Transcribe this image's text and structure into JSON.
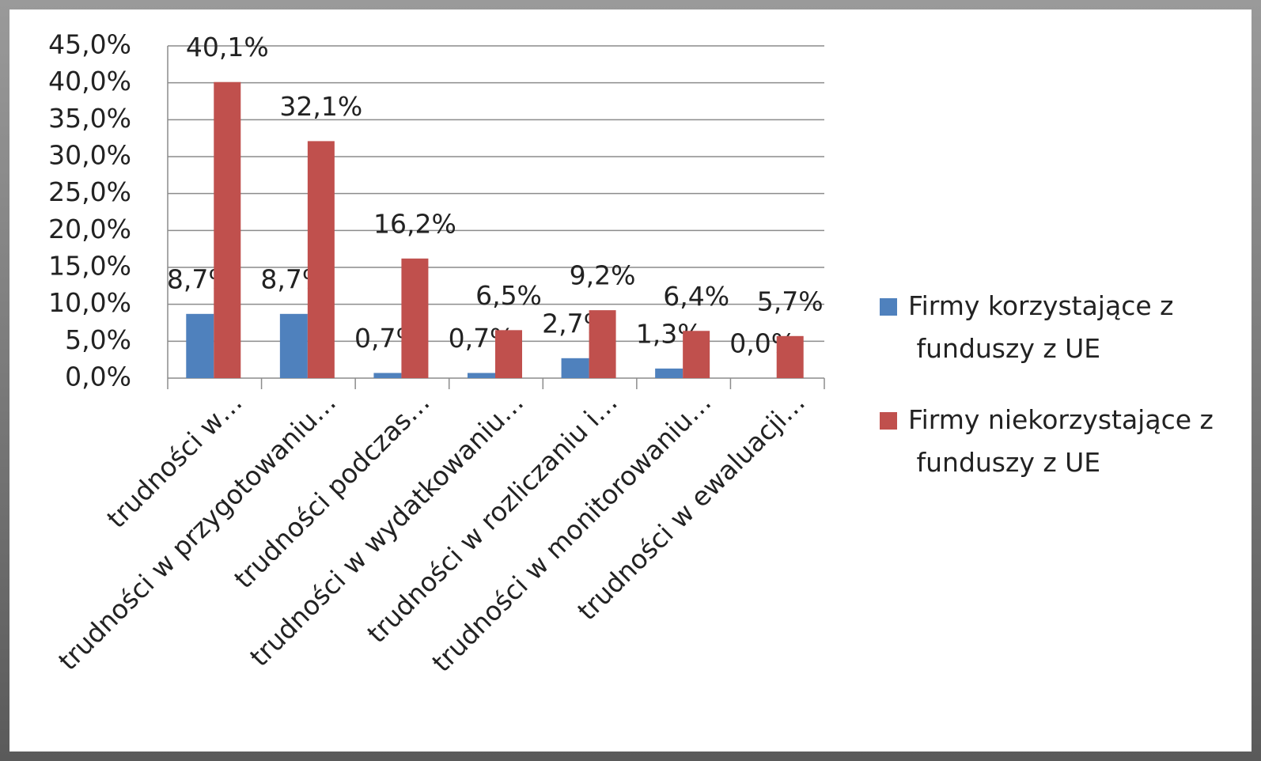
{
  "chart_data": {
    "type": "bar",
    "categories": [
      "trudności w…",
      "trudności w przygotowaniu…",
      "trudności podczas…",
      "trudności w wydatkowaniu…",
      "trudności w rozliczaniu i…",
      "trudności w monitorowaniu…",
      "trudności w ewaluacji…"
    ],
    "series": [
      {
        "name": "Firmy korzystające z funduszy z UE",
        "color": "#4f81bd",
        "values": [
          8.7,
          8.7,
          0.7,
          0.7,
          2.7,
          1.3,
          0.0
        ],
        "value_labels": [
          "8,7%",
          "8,7%",
          "0,7%",
          "0,7%",
          "2,7%",
          "1,3%",
          "0,0%"
        ]
      },
      {
        "name": "Firmy niekorzystające z funduszy z UE",
        "color": "#c0504d",
        "values": [
          40.1,
          32.1,
          16.2,
          6.5,
          9.2,
          6.4,
          5.7
        ],
        "value_labels": [
          "40,1%",
          "32,1%",
          "16,2%",
          "6,5%",
          "9,2%",
          "6,4%",
          "5,7%"
        ]
      }
    ],
    "ylim": [
      0,
      45
    ],
    "yticks": [
      {
        "value": 0,
        "label": "0,0%"
      },
      {
        "value": 5,
        "label": "5,0%"
      },
      {
        "value": 10,
        "label": "10,0%"
      },
      {
        "value": 15,
        "label": "15,0%"
      },
      {
        "value": 20,
        "label": "20,0%"
      },
      {
        "value": 25,
        "label": "25,0%"
      },
      {
        "value": 30,
        "label": "30,0%"
      },
      {
        "value": 35,
        "label": "35,0%"
      },
      {
        "value": 40,
        "label": "40,0%"
      },
      {
        "value": 45,
        "label": "45,0%"
      }
    ],
    "grid": true,
    "legend": "right"
  }
}
